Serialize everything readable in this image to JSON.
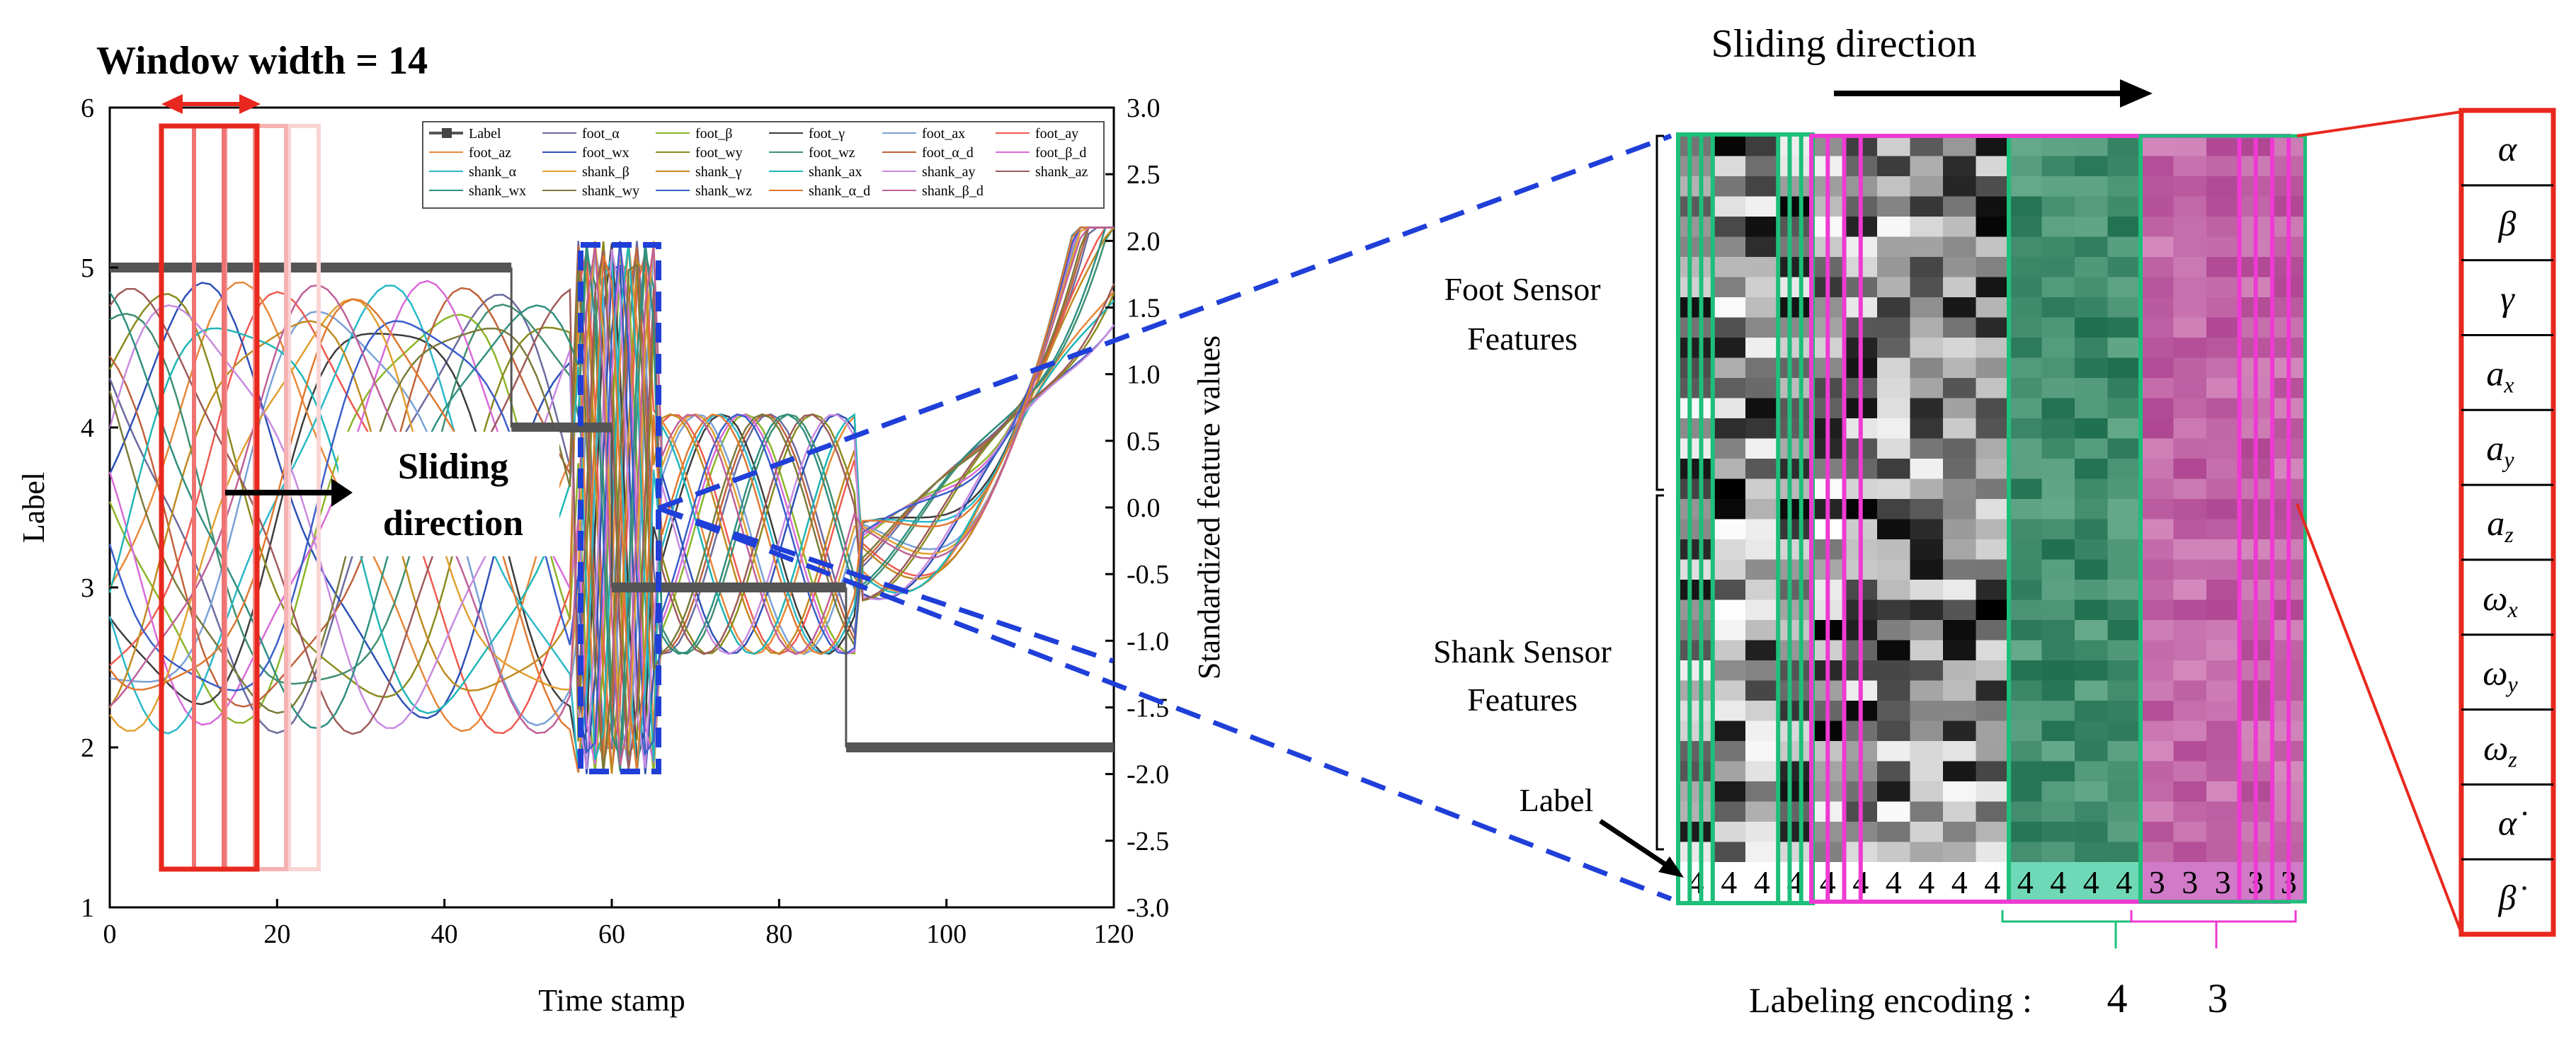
{
  "title": "Window width = 14",
  "sliding_direction": "Sliding direction",
  "sliding_direction_line1": "Sliding",
  "sliding_direction_line2": "direction",
  "foot_features": [
    "Foot Sensor",
    "Features"
  ],
  "shank_features": [
    "Shank Sensor",
    "Features"
  ],
  "label_text": "Label",
  "labeling_encoding": "Labeling encoding :",
  "encoding_values": [
    "4",
    "3"
  ],
  "matrix_labels": [
    "4",
    "4",
    "4",
    "4",
    "4",
    "4",
    "4",
    "4",
    "4",
    "4",
    "4",
    "4",
    "4",
    "4",
    "3",
    "3",
    "3",
    "3",
    "3"
  ],
  "symbol_rows": [
    "α",
    "β",
    "γ",
    "a",
    "a",
    "a",
    "ω",
    "ω",
    "ω",
    "α̇",
    "β̇"
  ],
  "symbol_subscripts": [
    "",
    "",
    "",
    "x",
    "y",
    "z",
    "x",
    "y",
    "z",
    "",
    ""
  ],
  "chart_data": {
    "type": "line",
    "xlabel": "Time stamp",
    "ylabel": "Label",
    "y2label": "Standardized feature values",
    "xlim": [
      0,
      120
    ],
    "ylim": [
      1,
      6
    ],
    "y2lim": [
      -3.0,
      3.0
    ],
    "xticks": [
      "0",
      "20",
      "40",
      "60",
      "80",
      "100",
      "120"
    ],
    "yticks": [
      "1",
      "2",
      "3",
      "4",
      "5",
      "6"
    ],
    "y2ticks": [
      "3.0",
      "2.5",
      "2.0",
      "1.5",
      "1.0",
      "0.5",
      "0.0",
      "-0.5",
      "-1.0",
      "-1.5",
      "-2.0",
      "-2.5",
      "-3.0"
    ],
    "label_series": {
      "name": "Label",
      "x": [
        0,
        48,
        48,
        60,
        60,
        88,
        88,
        120
      ],
      "y": [
        5,
        5,
        4,
        4,
        3,
        3,
        2,
        2
      ]
    },
    "legend": [
      "Label",
      "foot_α",
      "foot_β",
      "foot_γ",
      "foot_ax",
      "foot_ay",
      "foot_az",
      "foot_wx",
      "foot_wy",
      "foot_wz",
      "foot_α_d",
      "foot_β_d",
      "shank_α",
      "shank_β",
      "shank_γ",
      "shank_ax",
      "shank_ay",
      "shank_az",
      "shank_wx",
      "shank_wy",
      "shank_wz",
      "shank_α_d",
      "shank_β_d"
    ],
    "series_colors": [
      "#555555",
      "#6b6b9e",
      "#8bb52a",
      "#3d3d3d",
      "#7aa0d6",
      "#ef5a50",
      "#e8883a",
      "#2c50b5",
      "#8a8a1e",
      "#3f8f70",
      "#c0623a",
      "#d96bd9",
      "#2ab8c8",
      "#e0a030",
      "#c08a20",
      "#1fb5b5",
      "#c88ae0",
      "#9e5a5a",
      "#2f8f80",
      "#7a7a3a",
      "#3a5ec8",
      "#e07830",
      "#c06098"
    ]
  },
  "colors": {
    "red": "#e8281e",
    "blue": "#1f3fd8",
    "green": "#1dbf7a",
    "magenta": "#ee3ad2"
  }
}
